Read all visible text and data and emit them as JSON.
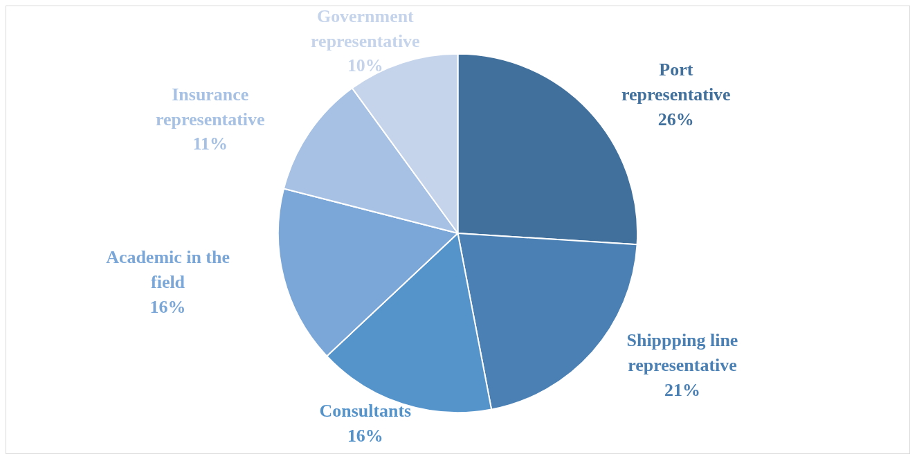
{
  "chart_data": {
    "type": "pie",
    "categories": [
      "Port representative",
      "Shippping line representative",
      "Consultants",
      "Academic in the field",
      "Insurance representative",
      "Government representative"
    ],
    "values": [
      26,
      21,
      16,
      16,
      11,
      10
    ],
    "value_labels": [
      "26%",
      "21%",
      "16%",
      "16%",
      "11%",
      "10%"
    ],
    "colors": [
      "#41709c",
      "#4a80b4",
      "#5593cb",
      "#7aa7d8",
      "#a6c1e3",
      "#c5d4eb"
    ],
    "legend": false
  }
}
